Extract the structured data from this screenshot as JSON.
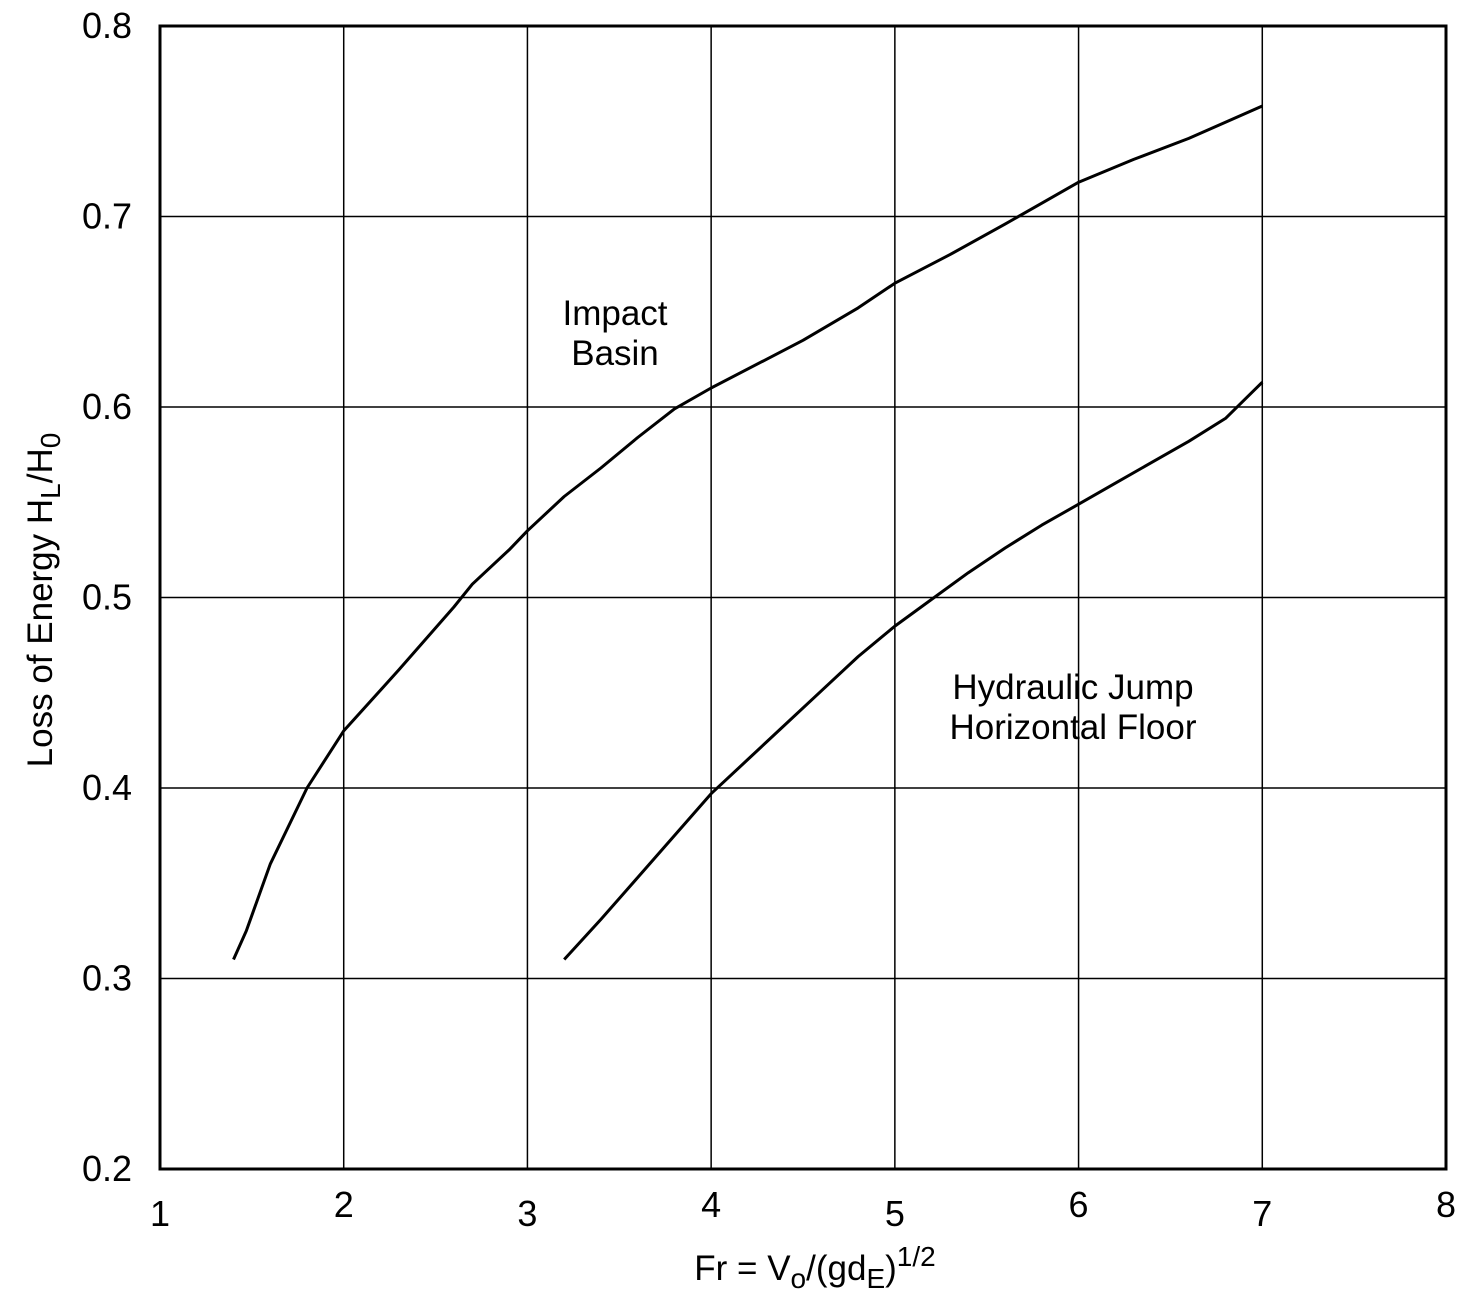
{
  "chart_data": {
    "type": "line",
    "xlabel": {
      "main": "Fr = V",
      "sub1": "o",
      "mid": "/(gd",
      "sub2": "E",
      "close": ")",
      "sup": "1/2"
    },
    "ylabel": {
      "main": "Loss of Energy H",
      "sub1": "L",
      "mid": "/H",
      "sub2": "0"
    },
    "xlim": [
      1,
      8
    ],
    "ylim": [
      0.2,
      0.8
    ],
    "x_ticks": [
      "1",
      "2",
      "3",
      "4",
      "5",
      "6",
      "7",
      "8"
    ],
    "y_ticks": [
      "0.2",
      "0.3",
      "0.4",
      "0.5",
      "0.6",
      "0.7",
      "0.8"
    ],
    "grid": true,
    "legend": "none",
    "series": [
      {
        "label_lines": [
          "Impact",
          "Basin"
        ],
        "x": [
          1.4,
          1.47,
          1.6,
          1.8,
          2.0,
          2.3,
          2.6,
          2.7,
          2.9,
          3.0,
          3.2,
          3.4,
          3.6,
          3.8,
          4.0,
          4.3,
          4.5,
          4.8,
          5.0,
          5.3,
          5.6,
          5.8,
          6.0,
          6.3,
          6.6,
          7.0
        ],
        "y": [
          0.31,
          0.325,
          0.36,
          0.4,
          0.43,
          0.462,
          0.495,
          0.507,
          0.525,
          0.535,
          0.553,
          0.568,
          0.584,
          0.599,
          0.61,
          0.625,
          0.635,
          0.652,
          0.665,
          0.68,
          0.696,
          0.707,
          0.718,
          0.73,
          0.741,
          0.758
        ]
      },
      {
        "label_lines": [
          "Hydraulic Jump",
          "Horizontal Floor"
        ],
        "x": [
          3.2,
          3.4,
          3.6,
          3.8,
          4.0,
          4.2,
          4.4,
          4.6,
          4.8,
          5.0,
          5.2,
          5.4,
          5.6,
          5.8,
          6.0,
          6.2,
          6.4,
          6.6,
          6.8,
          7.0
        ],
        "y": [
          0.31,
          0.331,
          0.353,
          0.375,
          0.397,
          0.415,
          0.433,
          0.451,
          0.469,
          0.485,
          0.499,
          0.513,
          0.526,
          0.538,
          0.549,
          0.56,
          0.571,
          0.582,
          0.594,
          0.613
        ]
      }
    ]
  }
}
